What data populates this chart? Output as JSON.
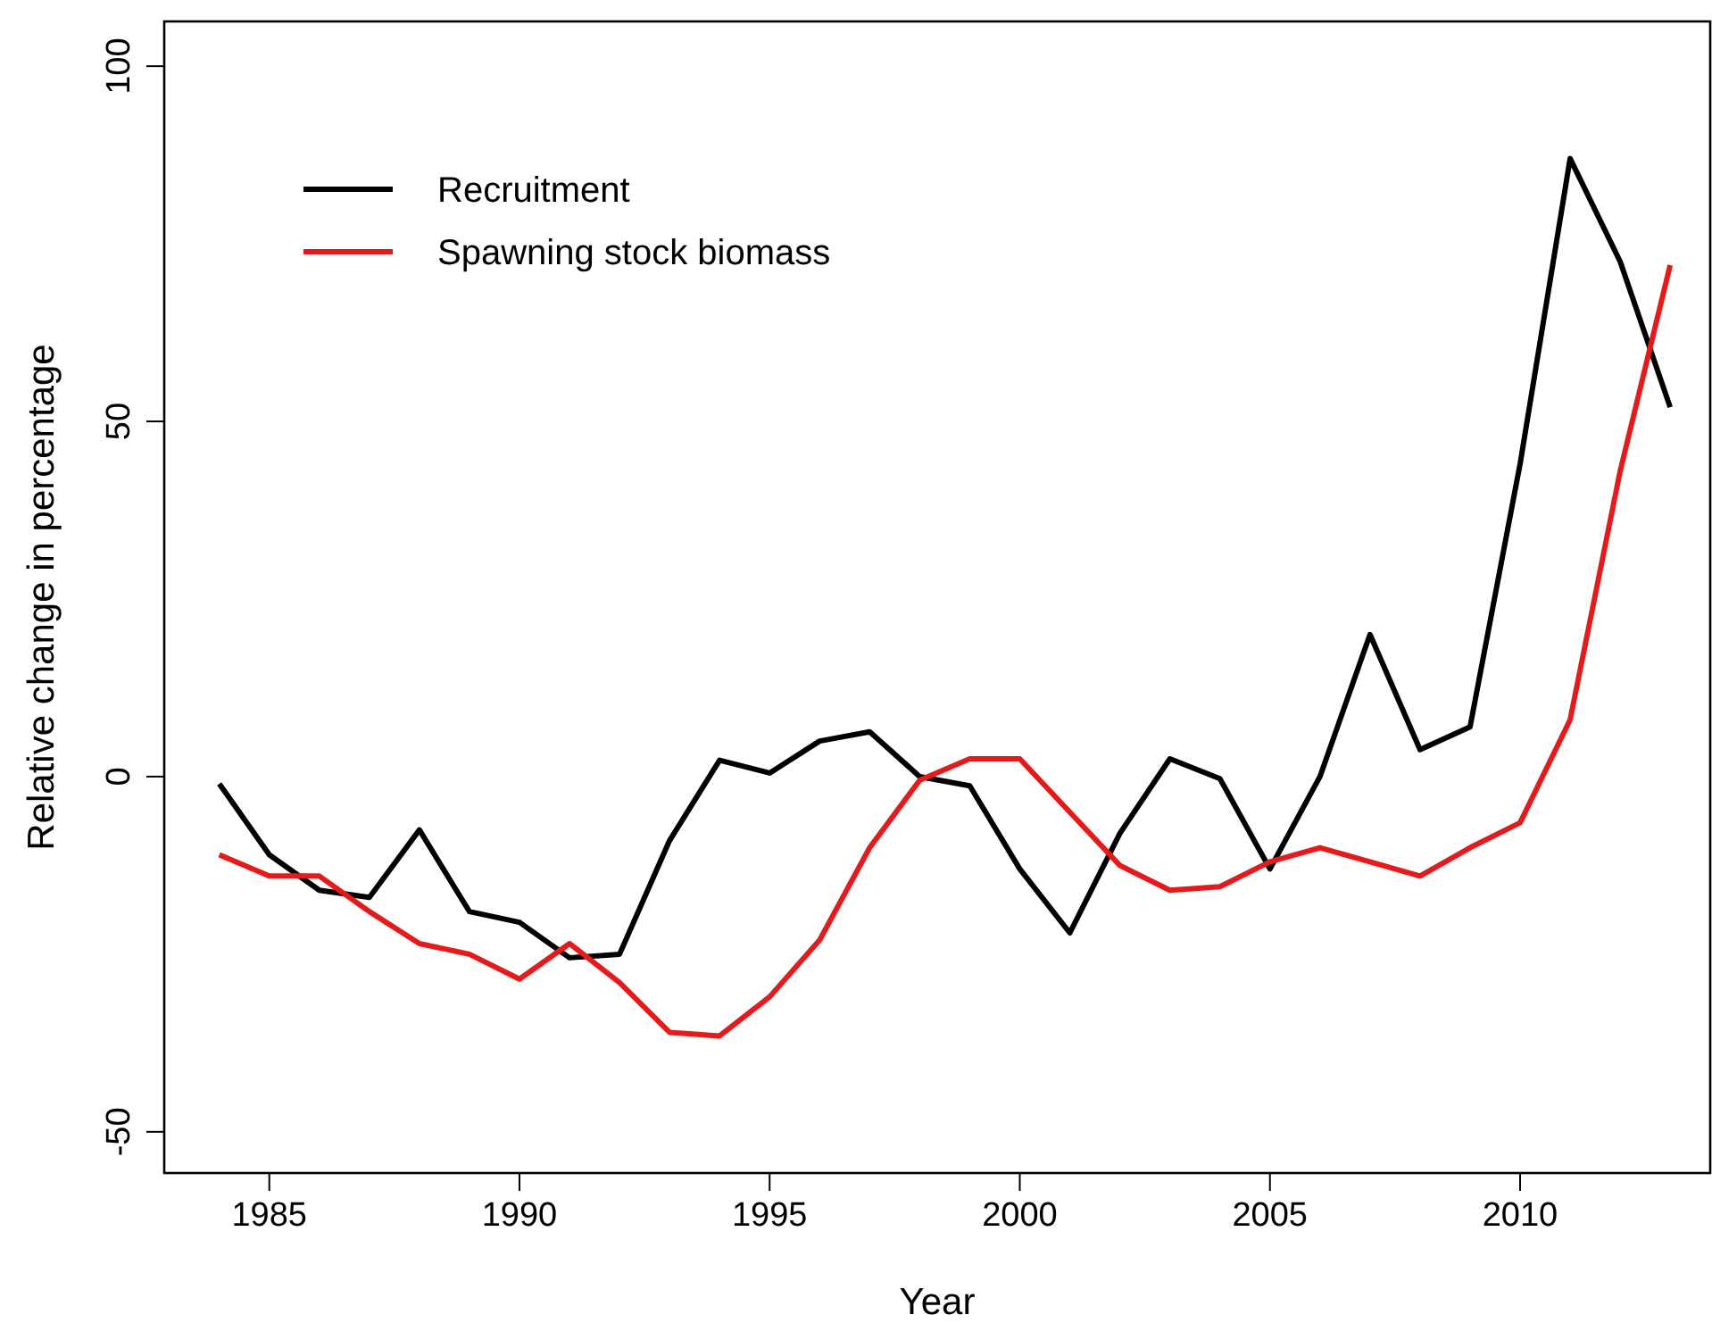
{
  "chart_data": {
    "type": "line",
    "xlabel": "Year",
    "ylabel": "Relative change in percentage",
    "x": [
      1984,
      1985,
      1986,
      1987,
      1988,
      1989,
      1990,
      1991,
      1992,
      1993,
      1994,
      1995,
      1996,
      1997,
      1998,
      1999,
      2000,
      2001,
      2002,
      2003,
      2004,
      2005,
      2006,
      2007,
      2008,
      2009,
      2010,
      2011,
      2012,
      2013
    ],
    "series": [
      {
        "name": "Recruitment",
        "color": "#000000",
        "values": [
          -1,
          -11,
          -16,
          -17,
          -7.5,
          -19,
          -20.5,
          -25.5,
          -25,
          -9,
          2.3,
          0.5,
          5,
          6.3,
          0,
          -1.3,
          -13,
          -22,
          -8,
          2.5,
          -0.3,
          -13,
          0,
          20,
          3.8,
          7,
          44,
          87,
          72.5,
          52
        ]
      },
      {
        "name": "Spawning stock biomass",
        "color": "#e41a1c",
        "values": [
          -11,
          -14,
          -14,
          -19,
          -23.5,
          -25,
          -28.5,
          -23.5,
          -29,
          -36,
          -36.5,
          -31,
          -23,
          -10,
          -0.5,
          2.5,
          2.5,
          -5,
          -12.5,
          -16,
          -15.5,
          -12,
          -10,
          -12,
          -14,
          -10,
          -6.5,
          8,
          43,
          72
        ]
      }
    ],
    "xlim": [
      1982.9,
      2013.8
    ],
    "xticks": [
      1985,
      1990,
      1995,
      2000,
      2005,
      2010
    ],
    "ylim": [
      -55.8,
      106.3
    ],
    "yticks": [
      -50,
      0,
      50,
      100
    ],
    "legend": "top left",
    "marker": "none",
    "line_style": "solid",
    "grid": false
  }
}
